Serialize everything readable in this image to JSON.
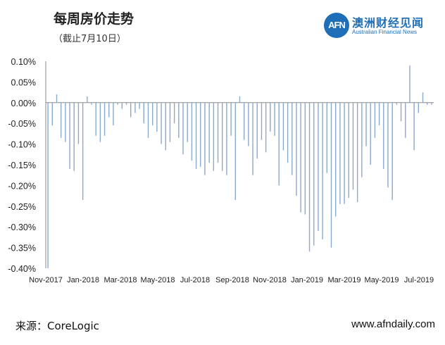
{
  "header": {
    "title": "每周房价走势",
    "subtitle": "（截止7月10日）"
  },
  "logo": {
    "mark": "AFN",
    "name_cn": "澳洲财经见闻",
    "name_en": "Australian Financial News"
  },
  "footer": {
    "source": "来源：CoreLogic",
    "website": "www.afndaily.com"
  },
  "colors": {
    "bar": "#8aa9cf",
    "axis": "#888888",
    "brand": "#1f6fb8"
  },
  "chart_data": {
    "type": "bar",
    "ylim": [
      -0.4,
      0.1
    ],
    "yticks": [
      "0.10%",
      "0.05%",
      "0.00%",
      "-0.05%",
      "-0.10%",
      "-0.15%",
      "-0.20%",
      "-0.25%",
      "-0.30%",
      "-0.35%",
      "-0.40%"
    ],
    "ytick_values": [
      0.1,
      0.05,
      0.0,
      -0.05,
      -0.1,
      -0.15,
      -0.2,
      -0.25,
      -0.3,
      -0.35,
      -0.4
    ],
    "xticks": [
      "Nov-2017",
      "Jan-2018",
      "Mar-2018",
      "May-2018",
      "Jul-2018",
      "Sep-2018",
      "Nov-2018",
      "Jan-2019",
      "Mar-2019",
      "May-2019",
      "Jul-2019"
    ],
    "grid": false,
    "legend": "none",
    "unit": "%",
    "values": [
      -0.4,
      -0.055,
      0.02,
      -0.085,
      -0.095,
      -0.16,
      -0.165,
      -0.1,
      -0.235,
      0.015,
      -0.005,
      -0.08,
      -0.095,
      -0.08,
      -0.035,
      -0.055,
      -0.005,
      -0.015,
      -0.005,
      -0.035,
      -0.025,
      -0.015,
      -0.05,
      -0.085,
      -0.055,
      -0.07,
      -0.1,
      -0.115,
      -0.095,
      -0.05,
      -0.085,
      -0.125,
      -0.095,
      -0.14,
      -0.16,
      -0.155,
      -0.175,
      -0.145,
      -0.165,
      -0.145,
      -0.165,
      -0.175,
      -0.08,
      -0.235,
      0.015,
      -0.09,
      -0.105,
      -0.175,
      -0.135,
      -0.09,
      -0.12,
      -0.07,
      -0.08,
      -0.2,
      -0.115,
      -0.145,
      -0.175,
      -0.225,
      -0.265,
      -0.27,
      -0.36,
      -0.345,
      -0.31,
      -0.33,
      -0.17,
      -0.35,
      -0.275,
      -0.245,
      -0.245,
      -0.23,
      -0.21,
      -0.24,
      -0.18,
      -0.105,
      -0.15,
      -0.085,
      -0.055,
      -0.16,
      -0.205,
      -0.235,
      -0.005,
      -0.045,
      -0.085,
      0.09,
      -0.115,
      -0.025,
      0.025,
      -0.005,
      -0.005
    ]
  }
}
